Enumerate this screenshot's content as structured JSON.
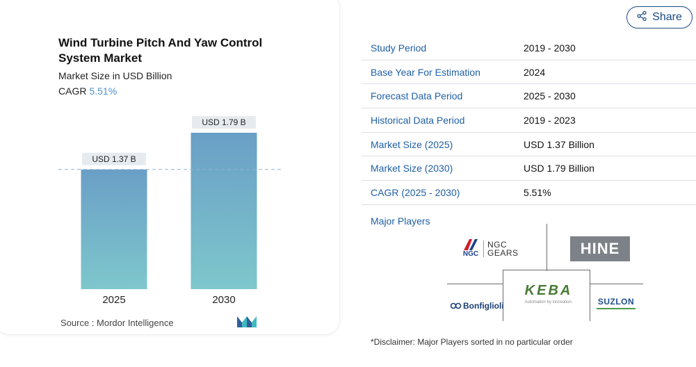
{
  "chart_panel": {
    "title": "Wind Turbine Pitch And Yaw Control System Market",
    "subtitle": "Market Size in USD Billion",
    "cagr_label": "CAGR",
    "cagr_value": "5.51%",
    "source": "Source :  Mordor Intelligence"
  },
  "chart_data": {
    "type": "bar",
    "categories": [
      "2025",
      "2030"
    ],
    "values": [
      1.37,
      1.79
    ],
    "data_labels": [
      "USD 1.37 B",
      "USD 1.79 B"
    ],
    "title": "Wind Turbine Pitch And Yaw Control System Market",
    "xlabel": "",
    "ylabel": "",
    "ylim": [
      0,
      1.79
    ],
    "reference_line": 1.37,
    "bar_color": "#6a9fc6",
    "bar_color_bottom": "#7ec7cc",
    "grid": false
  },
  "share": {
    "label": "Share"
  },
  "facts": [
    {
      "label": "Study Period",
      "value": "2019 - 2030"
    },
    {
      "label": "Base Year For Estimation",
      "value": "2024"
    },
    {
      "label": "Forecast Data Period",
      "value": "2025 - 2030"
    },
    {
      "label": "Historical Data Period",
      "value": "2019 - 2023"
    },
    {
      "label": "Market Size (2025)",
      "value": "USD 1.37 Billion"
    },
    {
      "label": "Market Size (2030)",
      "value": "USD 1.79 Billion"
    },
    {
      "label": "CAGR (2025 - 2030)",
      "value": "5.51%"
    }
  ],
  "players": {
    "label": "Major Players",
    "logos": {
      "ngc_mark": "NGC",
      "ngc_line1": "NGC",
      "ngc_line2": "GEARS",
      "hine": "HINE",
      "keba": "KEBA",
      "keba_sub": "Automation by innovation.",
      "bonfiglioli": "Bonfiglioli",
      "suzlon": "SUZLON"
    }
  },
  "disclaimer": "*Disclaimer: Major Players sorted in no particular order"
}
